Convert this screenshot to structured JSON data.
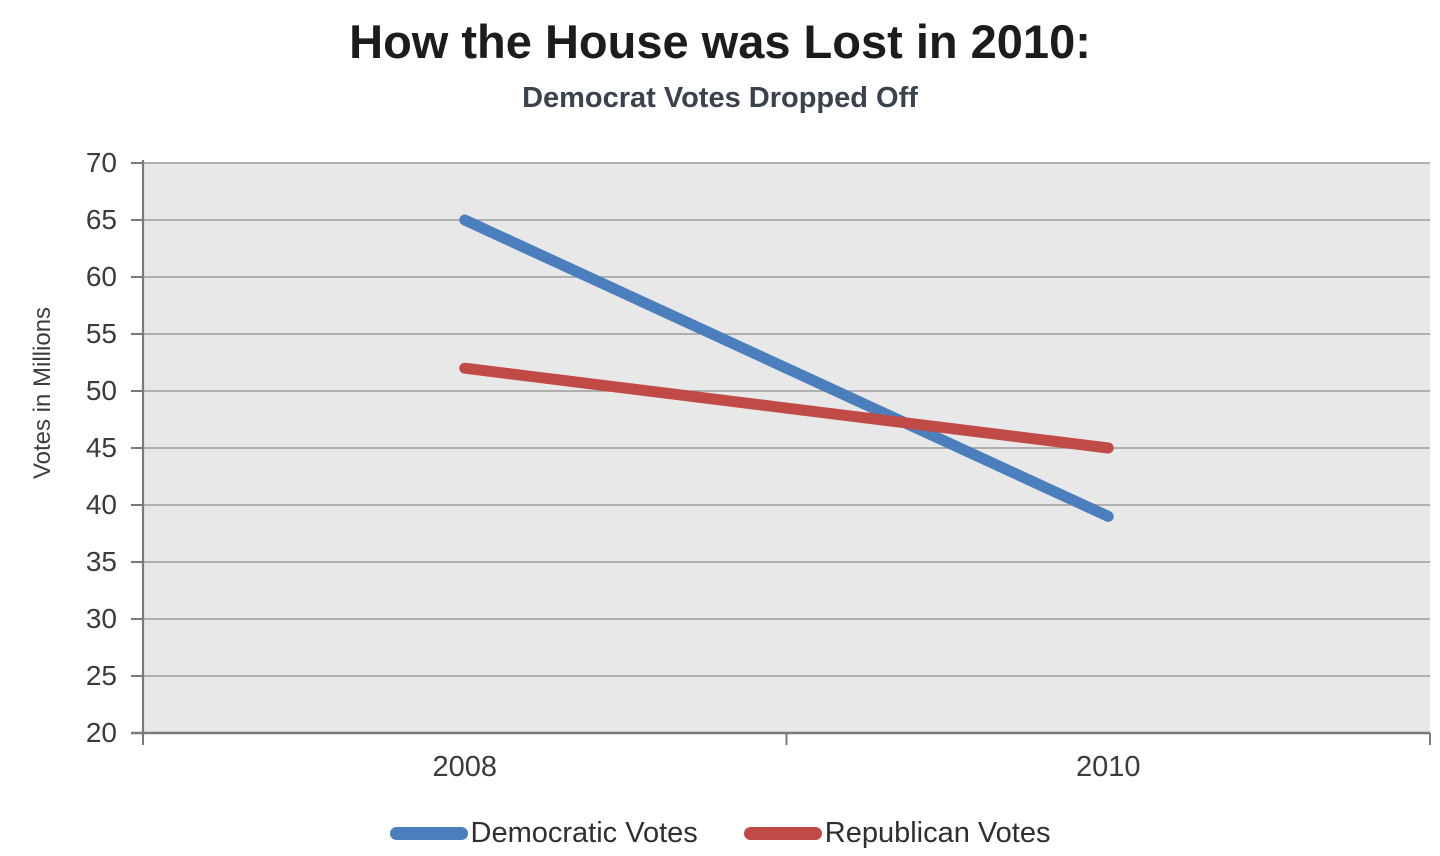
{
  "chart_data": {
    "type": "line",
    "title": "How the House was Lost in 2010:",
    "subtitle": "Democrat Votes Dropped Off",
    "categories": [
      "2008",
      "2010"
    ],
    "series": [
      {
        "name": "Democratic Votes",
        "values": [
          65,
          39
        ],
        "color": "#4a7ebc"
      },
      {
        "name": "Republican Votes",
        "values": [
          52,
          45
        ],
        "color": "#c04b46"
      }
    ],
    "xlabel": "",
    "ylabel": "Votes in Millions",
    "ylim": [
      20,
      70
    ],
    "yticks": [
      70,
      65,
      60,
      55,
      50,
      45,
      40,
      35,
      30,
      25,
      20
    ],
    "grid": true,
    "legend_position": "bottom",
    "colors": {
      "plot_background": "#e8e8e8",
      "gridline": "#9c9c9c",
      "axis": "#7a7a7a",
      "title_text": "#1c1c1c",
      "subtitle_text": "#3a424d",
      "tick_text": "#3b3b3b"
    }
  }
}
